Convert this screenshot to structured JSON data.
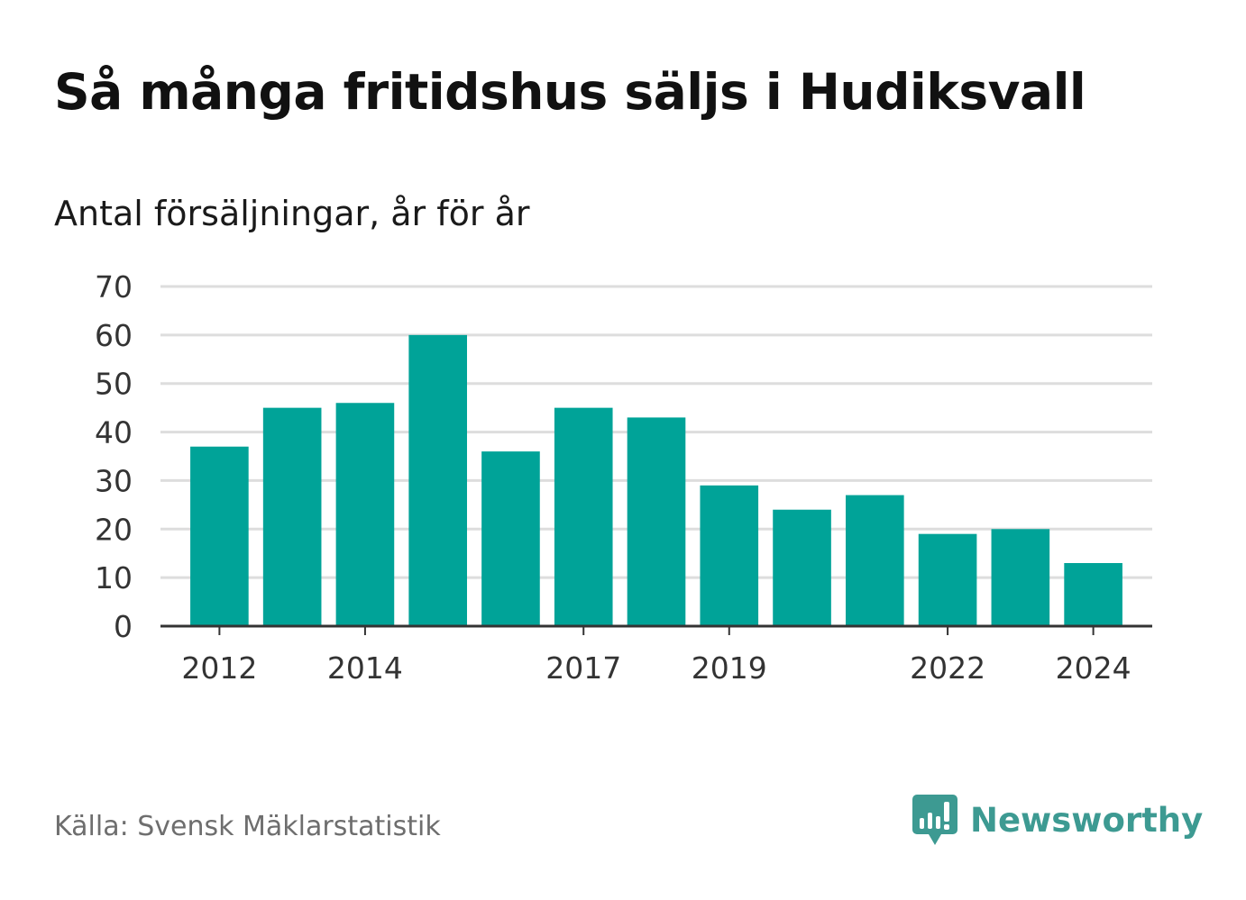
{
  "title": "Så många fritidshus säljs i Hudiksvall",
  "subtitle": "Antal försäljningar, år för år",
  "source": "Källa: Svensk Mäklarstatistik",
  "brand": {
    "name": "Newsworthy",
    "icon": "newsworthy-logo-icon",
    "color": "#3d9a92"
  },
  "colors": {
    "bar": "#00a398",
    "grid": "#dddddd",
    "axis": "#333333",
    "tick_text": "#333333"
  },
  "chart_data": {
    "type": "bar",
    "categories": [
      "2012",
      "2013",
      "2014",
      "2015",
      "2016",
      "2017",
      "2018",
      "2019",
      "2020",
      "2021",
      "2022",
      "2023",
      "2024"
    ],
    "values": [
      37,
      45,
      46,
      60,
      36,
      45,
      43,
      29,
      24,
      27,
      19,
      20,
      13
    ],
    "x_tick_labels": [
      "2012",
      "2014",
      "2017",
      "2019",
      "2022",
      "2024"
    ],
    "y_ticks": [
      0,
      10,
      20,
      30,
      40,
      50,
      60,
      70
    ],
    "ylim": [
      0,
      70
    ],
    "grid": true,
    "legend": "none"
  }
}
